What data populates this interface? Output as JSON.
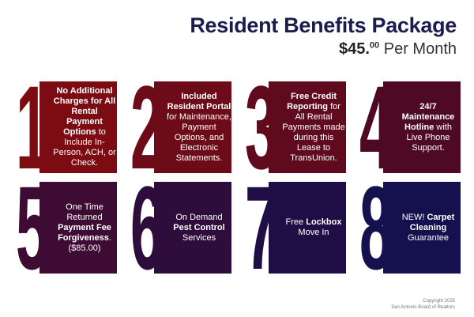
{
  "header": {
    "title": "Resident Benefits Package",
    "price_dollars": "$45.",
    "price_cents": "00",
    "price_period": "Per Month"
  },
  "cards": [
    {
      "number": "1",
      "color": "#7c0b12",
      "html": "<b>No Additional Charges for All Rental Payment Options</b> to Include In-Person, ACH, or Check."
    },
    {
      "number": "2",
      "color": "#6d0b18",
      "html": "<b>Included Resident Portal</b> for Maintenance, Payment Options, and Electronic Statements."
    },
    {
      "number": "3",
      "color": "#5f0b1d",
      "html": "<b>Free Credit Reporting</b> for All Rental Payments made during this Lease to TransUnion."
    },
    {
      "number": "4",
      "color": "#4e0a24",
      "html": "<b>24/7 Maintenance Hotline</b> with Live Phone Support."
    },
    {
      "number": "5",
      "color": "#3d0b33",
      "html": "One Time Returned <b>Payment Fee Forgiveness</b>. ($85.00)"
    },
    {
      "number": "6",
      "color": "#2e0c3c",
      "html": "On Demand <b>Pest Control</b> Services"
    },
    {
      "number": "7",
      "color": "#1f0d45",
      "html": "Free <b>Lockbox</b> Move In"
    },
    {
      "number": "8",
      "color": "#14114e",
      "html": "NEW! <b>Carpet Cleaning</b> Guarantee"
    }
  ],
  "footer": {
    "line1": "Copyright 2025",
    "line2": "San Antonio Board of Realtors"
  }
}
